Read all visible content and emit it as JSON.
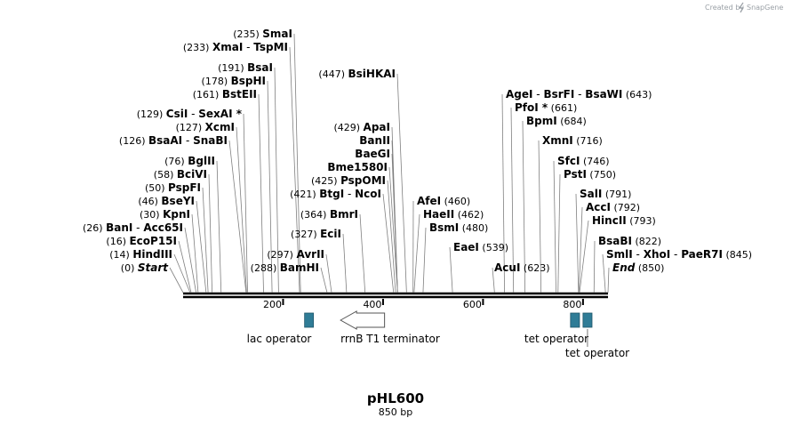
{
  "credit": {
    "text": "Created by",
    "brand": "SnapGene"
  },
  "plasmid": {
    "name": "pHL600",
    "length_label": "850 bp",
    "length": 850
  },
  "colors": {
    "feature": "#2f7c96",
    "line": "#000000",
    "leader": "#808080"
  },
  "axis": {
    "ticks": [
      200,
      400,
      600,
      800
    ]
  },
  "left_labels": [
    {
      "pos": "(235)",
      "names": [
        "SmaI"
      ],
      "cut": 235
    },
    {
      "pos": "(233)",
      "names": [
        "XmaI",
        "TspMI"
      ],
      "cut": 233
    },
    {
      "pos": "(191)",
      "names": [
        "BsaI"
      ],
      "cut": 191
    },
    {
      "pos": "(178)",
      "names": [
        "BspHI"
      ],
      "cut": 178
    },
    {
      "pos": "(161)",
      "names": [
        "BstEII"
      ],
      "cut": 161
    },
    {
      "pos": "(129)",
      "names": [
        "CsiI",
        "SexAI *"
      ],
      "cut": 129
    },
    {
      "pos": "(127)",
      "names": [
        "XcmI"
      ],
      "cut": 127
    },
    {
      "pos": "(126)",
      "names": [
        "BsaAI",
        "SnaBI"
      ],
      "cut": 126
    },
    {
      "pos": "(76)",
      "names": [
        "BglII"
      ],
      "cut": 76
    },
    {
      "pos": "(58)",
      "names": [
        "BciVI"
      ],
      "cut": 58
    },
    {
      "pos": "(50)",
      "names": [
        "PspFI"
      ],
      "cut": 50
    },
    {
      "pos": "(46)",
      "names": [
        "BseYI"
      ],
      "cut": 46
    },
    {
      "pos": "(30)",
      "names": [
        "KpnI"
      ],
      "cut": 30
    },
    {
      "pos": "(26)",
      "names": [
        "BanI",
        "Acc65I"
      ],
      "cut": 26
    },
    {
      "pos": "(16)",
      "names": [
        "EcoP15I"
      ],
      "cut": 16
    },
    {
      "pos": "(14)",
      "names": [
        "HindIII"
      ],
      "cut": 14
    },
    {
      "pos": "(0)",
      "names": [
        "Start"
      ],
      "cut": 0,
      "italic": true
    },
    {
      "pos": "(447)",
      "names": [
        "BsiHKAI"
      ],
      "cut": 447
    },
    {
      "pos": "(429)",
      "names": [
        "ApaI"
      ],
      "cut": 429
    },
    {
      "pos": "",
      "names": [
        "BanII"
      ],
      "cut": 429
    },
    {
      "pos": "",
      "names": [
        "BaeGI"
      ],
      "cut": 429
    },
    {
      "pos": "",
      "names": [
        "Bme1580I"
      ],
      "cut": 429
    },
    {
      "pos": "(425)",
      "names": [
        "PspOMI"
      ],
      "cut": 425
    },
    {
      "pos": "(421)",
      "names": [
        "BtgI",
        "NcoI"
      ],
      "cut": 421
    },
    {
      "pos": "(364)",
      "names": [
        "BmrI"
      ],
      "cut": 364
    },
    {
      "pos": "(327)",
      "names": [
        "EciI"
      ],
      "cut": 327
    },
    {
      "pos": "(297)",
      "names": [
        "AvrII"
      ],
      "cut": 297
    },
    {
      "pos": "(288)",
      "names": [
        "BamHI"
      ],
      "cut": 288
    }
  ],
  "right_labels": [
    {
      "pos": "(460)",
      "names": [
        "AfeI"
      ],
      "cut": 460
    },
    {
      "pos": "(462)",
      "names": [
        "HaeII"
      ],
      "cut": 462
    },
    {
      "pos": "(480)",
      "names": [
        "BsmI"
      ],
      "cut": 480
    },
    {
      "pos": "(539)",
      "names": [
        "EaeI"
      ],
      "cut": 539
    },
    {
      "pos": "(643)",
      "names": [
        "AgeI",
        "BsrFI",
        "BsaWI"
      ],
      "cut": 643
    },
    {
      "pos": "(661)",
      "names": [
        "PfoI *"
      ],
      "cut": 661
    },
    {
      "pos": "(684)",
      "names": [
        "BpmI"
      ],
      "cut": 684
    },
    {
      "pos": "(716)",
      "names": [
        "XmnI"
      ],
      "cut": 716
    },
    {
      "pos": "(746)",
      "names": [
        "SfcI"
      ],
      "cut": 746
    },
    {
      "pos": "(750)",
      "names": [
        "PstI"
      ],
      "cut": 750
    },
    {
      "pos": "(791)",
      "names": [
        "SalI"
      ],
      "cut": 791
    },
    {
      "pos": "(792)",
      "names": [
        "AccI"
      ],
      "cut": 792
    },
    {
      "pos": "(793)",
      "names": [
        "HincII"
      ],
      "cut": 793
    },
    {
      "pos": "(822)",
      "names": [
        "BsaBI"
      ],
      "cut": 822
    },
    {
      "pos": "(845)",
      "names": [
        "SmlI",
        "XhoI",
        "PaeR7I"
      ],
      "cut": 845
    },
    {
      "pos": "(850)",
      "names": [
        "End"
      ],
      "cut": 850,
      "italic": true
    },
    {
      "pos": "(623)",
      "names": [
        "AcuI"
      ],
      "cut": 623
    }
  ],
  "features": [
    {
      "name": "lac operator",
      "kind": "box",
      "start": 243,
      "end": 260
    },
    {
      "name": "rrnB T1 terminator",
      "kind": "arrow",
      "start": 315,
      "end": 403,
      "direction": "reverse"
    },
    {
      "name": "tet operator",
      "kind": "box",
      "start": 775,
      "end": 793
    },
    {
      "name": "tet operator",
      "kind": "box",
      "start": 800,
      "end": 818
    }
  ]
}
